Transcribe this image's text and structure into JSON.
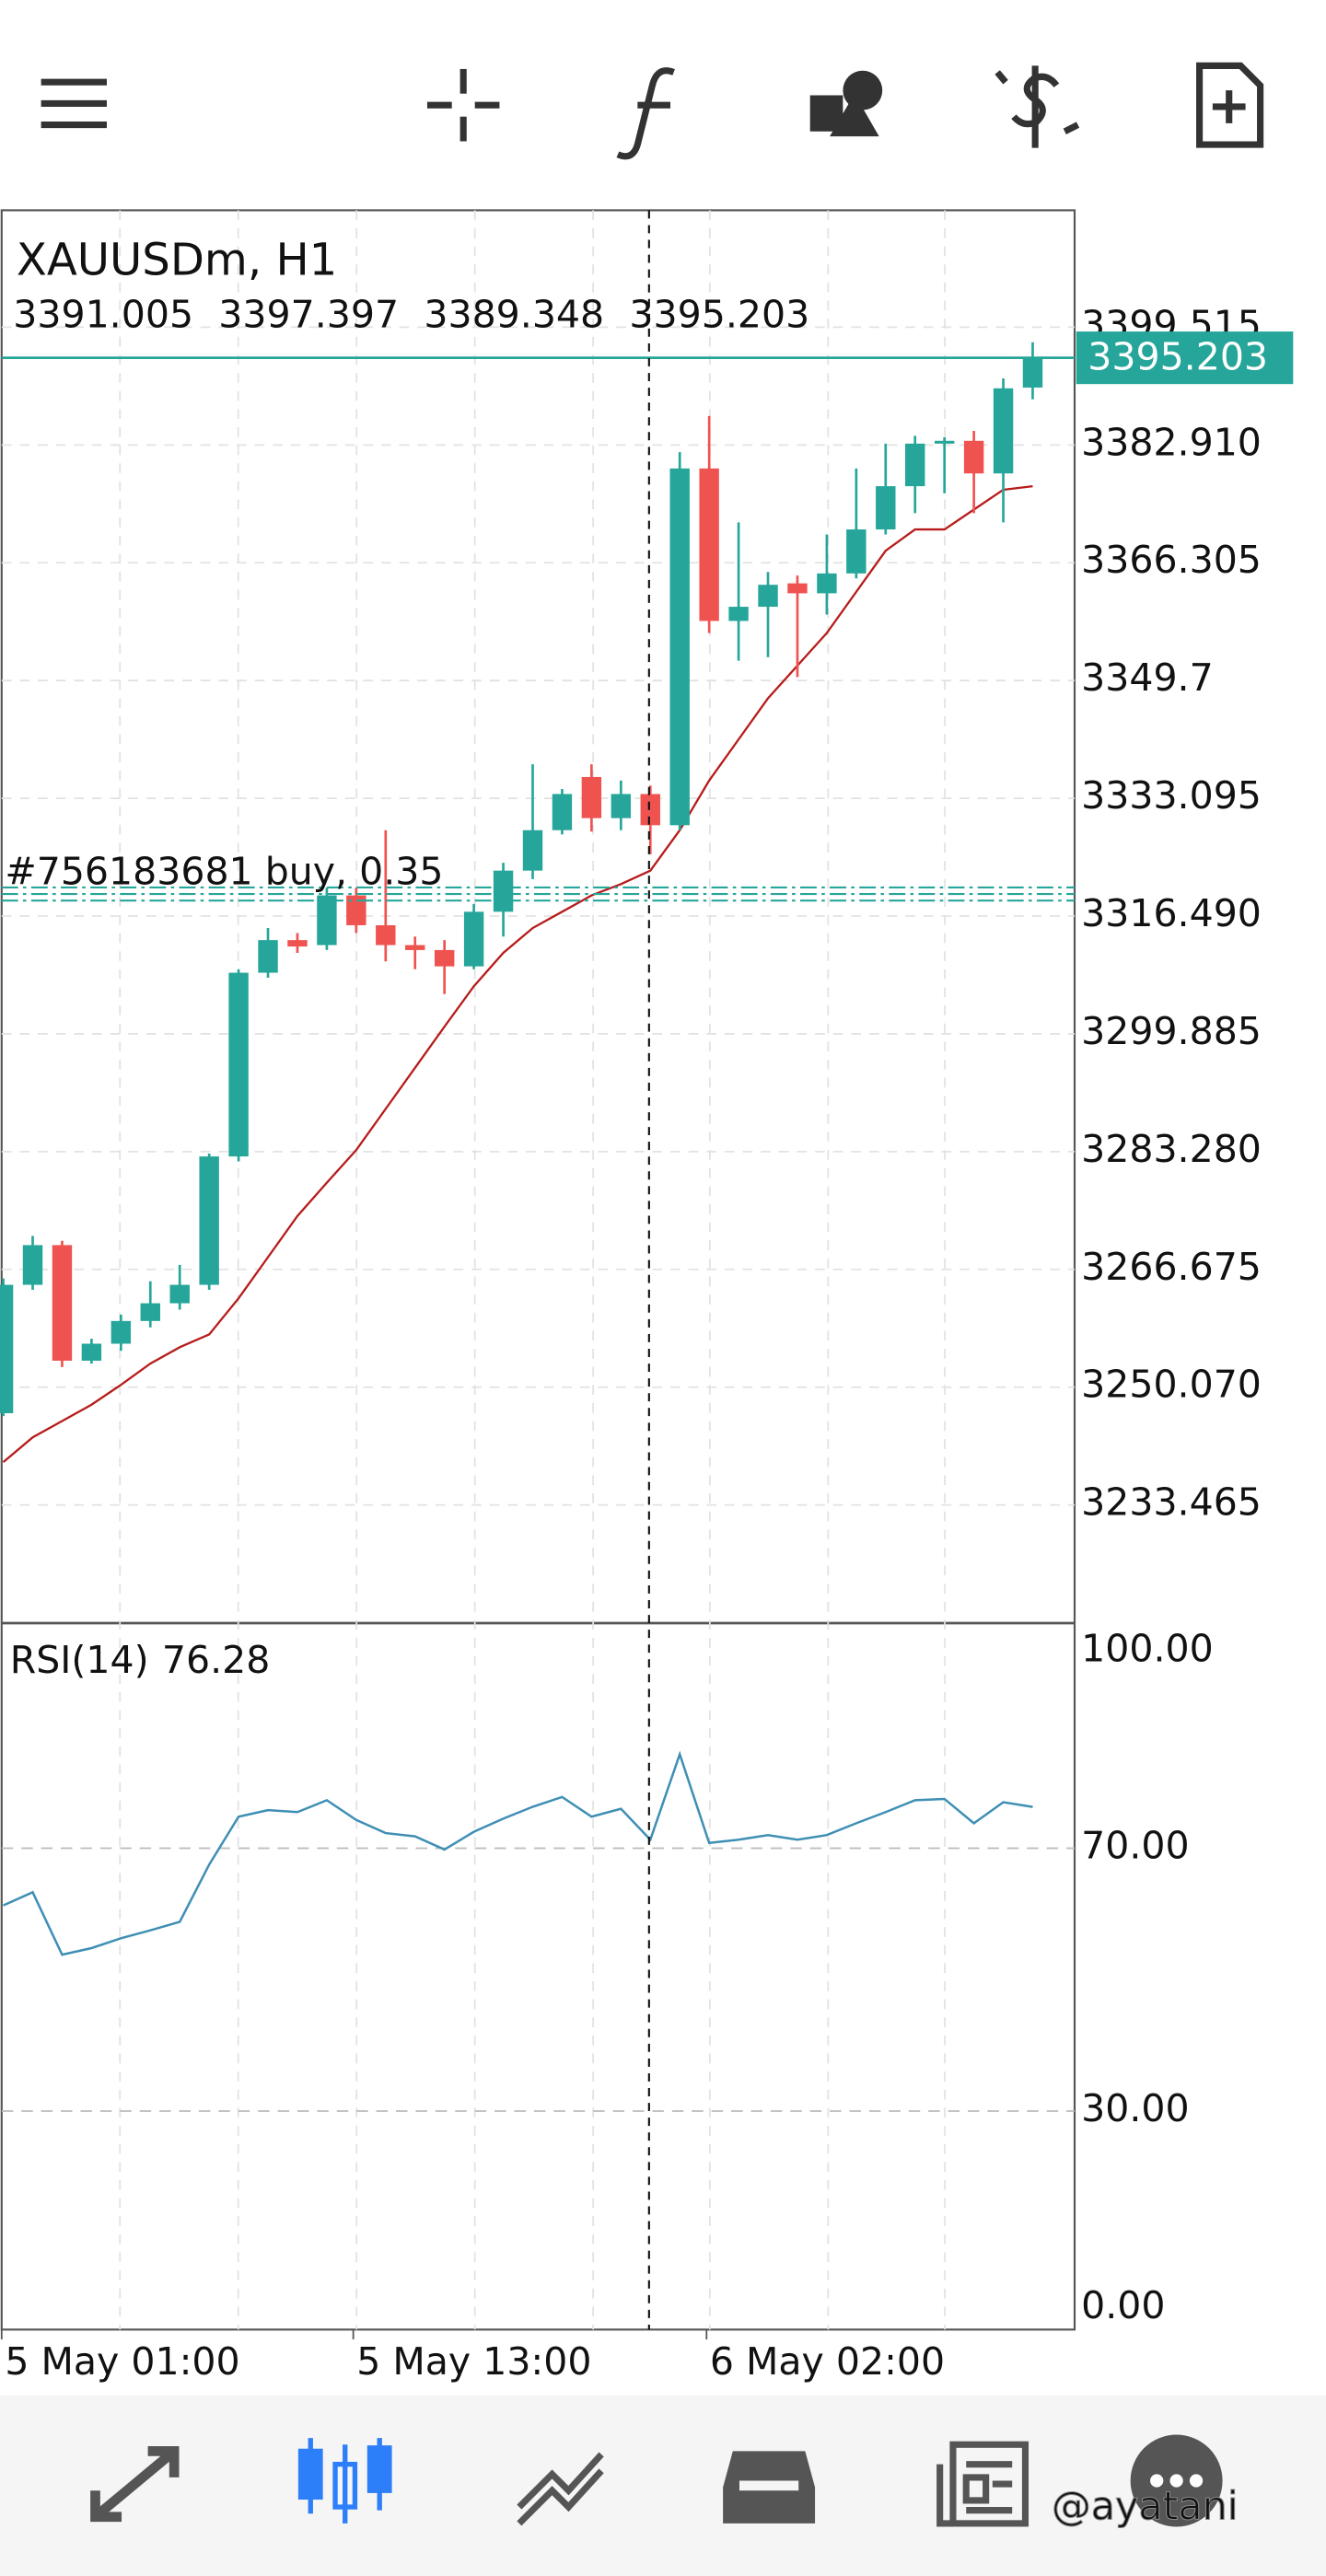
{
  "watermark": "@ayatani",
  "chart_data": [
    {
      "type": "candlestick",
      "title": "XAUUSDm, H1",
      "open": [
        3246.4,
        3264.5,
        3270.1,
        3253.8,
        3256.2,
        3259.4,
        3261.9,
        3264.5,
        3282.6,
        3308.5,
        3313.1,
        3312.4,
        3319.4,
        3315.2,
        3312.4,
        3311.7,
        3309.4,
        3317.1,
        3322.9,
        3328.6,
        3336.1,
        3330.3,
        3333.7,
        3329.3,
        3379.6,
        3358.1,
        3360.1,
        3363.4,
        3362.0,
        3364.8,
        3371.0,
        3377.1,
        3383.1,
        3383.5,
        3378.9,
        3391.005
      ],
      "high": [
        3265.4,
        3271.4,
        3270.7,
        3256.9,
        3260.3,
        3265.0,
        3267.3,
        3283.0,
        3309.0,
        3314.8,
        3314.1,
        3320.5,
        3320.5,
        3328.6,
        3313.6,
        3313.1,
        3318.2,
        3324.0,
        3337.9,
        3334.4,
        3337.9,
        3335.6,
        3334.9,
        3381.9,
        3387.0,
        3372.0,
        3365.0,
        3364.5,
        3370.3,
        3379.6,
        3383.1,
        3384.2,
        3384.0,
        3384.9,
        3392.3,
        3397.397
      ],
      "low": [
        3246.0,
        3263.8,
        3252.9,
        3253.4,
        3255.2,
        3258.5,
        3261.0,
        3263.8,
        3281.9,
        3307.8,
        3311.3,
        3311.7,
        3314.1,
        3310.1,
        3309.0,
        3305.5,
        3309.0,
        3313.6,
        3321.7,
        3328.0,
        3328.4,
        3328.6,
        3325.2,
        3328.6,
        3356.4,
        3352.5,
        3353.0,
        3350.2,
        3359.0,
        3364.1,
        3370.3,
        3373.3,
        3376.1,
        3373.3,
        3372.0,
        3389.348
      ],
      "close": [
        3264.5,
        3270.1,
        3253.8,
        3256.2,
        3259.4,
        3261.9,
        3264.5,
        3282.6,
        3308.5,
        3313.1,
        3312.2,
        3319.4,
        3315.2,
        3312.4,
        3311.7,
        3309.4,
        3317.1,
        3322.9,
        3328.6,
        3333.7,
        3330.3,
        3333.7,
        3329.3,
        3379.6,
        3358.1,
        3360.1,
        3363.2,
        3362.0,
        3364.8,
        3371.0,
        3377.1,
        3383.1,
        3383.5,
        3378.9,
        3390.9,
        3395.203
      ],
      "ma": [
        3239.5,
        3243.0,
        3245.3,
        3247.6,
        3250.4,
        3253.4,
        3255.7,
        3257.5,
        3262.6,
        3268.4,
        3274.2,
        3278.9,
        3283.5,
        3289.3,
        3295.1,
        3300.9,
        3306.6,
        3311.3,
        3314.8,
        3317.1,
        3319.4,
        3321.0,
        3322.9,
        3328.6,
        3335.6,
        3341.4,
        3347.2,
        3351.8,
        3356.4,
        3362.2,
        3368.0,
        3371.0,
        3371.0,
        3373.8,
        3376.6,
        3377.1
      ],
      "up_color": "#26a69a",
      "down_color": "#ef5350",
      "ma_color": "#b71c1c",
      "ylim": [
        3216.8,
        3416.0
      ],
      "yticks": [
        3399.515,
        {
          "value": 3382.91,
          "label": "3382.910"
        },
        3366.305,
        3349.7,
        3333.095,
        {
          "value": 3316.49,
          "label": "3316.490"
        },
        3299.885,
        {
          "value": 3283.28,
          "label": "3283.280"
        },
        3266.675,
        {
          "value": 3250.07,
          "label": "3250.070"
        },
        3233.465
      ],
      "position_label": "#756183681 buy, 0.35",
      "position_price": 3319.6,
      "x_labels": [
        "5 May 01:00",
        "5 May 13:00",
        "6 May 02:00"
      ]
    },
    {
      "type": "line",
      "title": "RSI(14)",
      "color": "#3f8fb5",
      "values": [
        61.3,
        63.3,
        53.8,
        54.8,
        56.3,
        57.5,
        58.8,
        67.5,
        74.8,
        75.8,
        75.5,
        77.3,
        74.3,
        72.3,
        71.8,
        69.8,
        72.5,
        74.5,
        76.3,
        77.8,
        74.8,
        76.0,
        71.3,
        84.3,
        70.8,
        71.3,
        72.0,
        71.3,
        72.0,
        73.8,
        75.5,
        77.3,
        77.5,
        73.8,
        77.0,
        76.28
      ],
      "ylim": [
        0,
        100
      ],
      "yticks": [
        {
          "value": 100,
          "label": "100.00"
        },
        {
          "value": 70,
          "label": "70.00"
        },
        {
          "value": 30,
          "label": "30.00"
        },
        {
          "value": 0,
          "label": "0.00"
        }
      ]
    }
  ]
}
